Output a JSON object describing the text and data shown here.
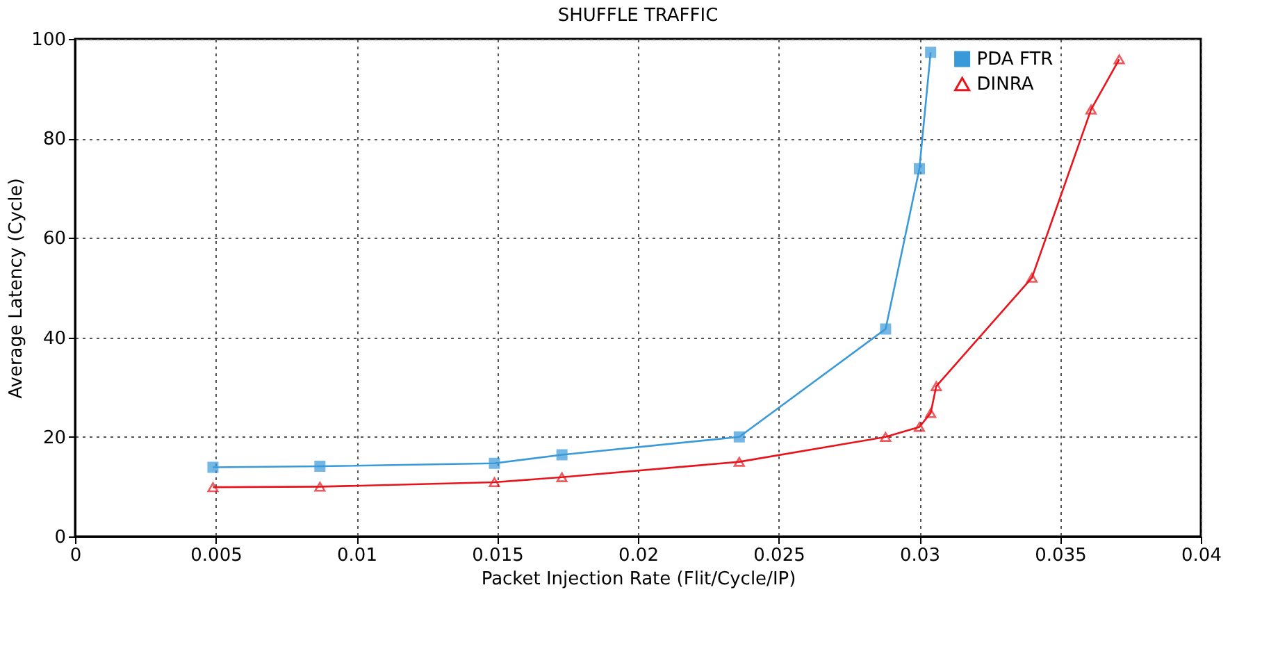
{
  "chart_data": {
    "type": "line",
    "title": "SHUFFLE TRAFFIC",
    "xlabel": "Packet Injection Rate (Flit/Cycle/IP)",
    "ylabel": "Average Latency (Cycle)",
    "xlim": [
      0,
      0.04
    ],
    "xticks": [
      0,
      0.005,
      0.01,
      0.015,
      0.02,
      0.025,
      0.03,
      0.035,
      0.04
    ],
    "ylim": [
      0,
      100
    ],
    "yticks": [
      0,
      20,
      40,
      60,
      80,
      100
    ],
    "grid": true,
    "legend": "top right",
    "series": [
      {
        "name": "PDA FTR",
        "color": "#3a9ad9",
        "marker": "square",
        "x": [
          0.0049,
          0.0087,
          0.0149,
          0.0173,
          0.0236,
          0.0288,
          0.03,
          0.0304
        ],
        "values": [
          13.9,
          14.1,
          14.7,
          16.4,
          20,
          41.7,
          73.9,
          97.3
        ]
      },
      {
        "name": "DINRA",
        "color": "#e8131b",
        "marker": "triangle",
        "x": [
          0.0049,
          0.0087,
          0.0149,
          0.0173,
          0.0236,
          0.0288,
          0.03,
          0.0304,
          0.0306,
          0.034,
          0.0361,
          0.0371
        ],
        "values": [
          9.9,
          10,
          10.9,
          11.9,
          15,
          20,
          22,
          24.8,
          30.2,
          52,
          85.8,
          95.9
        ]
      }
    ]
  }
}
